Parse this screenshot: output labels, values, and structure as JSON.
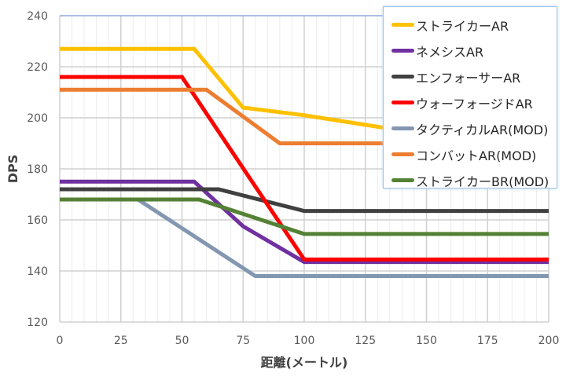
{
  "chart_data": {
    "type": "line",
    "title": "",
    "xlabel": "距離(メートル)",
    "ylabel": "DPS",
    "xlim": [
      0,
      200
    ],
    "ylim": [
      120,
      240
    ],
    "xticks": [
      0,
      25,
      50,
      75,
      100,
      125,
      150,
      175,
      200
    ],
    "yticks": [
      120,
      140,
      160,
      180,
      200,
      220,
      240
    ],
    "grid": true,
    "legend_position": "top-right",
    "series": [
      {
        "name": "ストライカーAR",
        "color": "#FFC000",
        "x": [
          0,
          55,
          75,
          100,
          130,
          200
        ],
        "y": [
          227,
          227,
          204,
          201,
          196.5,
          187
        ]
      },
      {
        "name": "ネメシスAR",
        "color": "#7030A0",
        "x": [
          0,
          55,
          75,
          100,
          200
        ],
        "y": [
          175,
          175,
          157.5,
          143.5,
          143.5
        ]
      },
      {
        "name": "エンフォーサーAR",
        "color": "#404040",
        "x": [
          0,
          65,
          100,
          200
        ],
        "y": [
          172,
          172,
          163.5,
          163.5
        ]
      },
      {
        "name": "ウォーフォージドAR",
        "color": "#FF0000",
        "x": [
          0,
          50,
          100,
          200
        ],
        "y": [
          216,
          216,
          144.5,
          144.5
        ]
      },
      {
        "name": "タクティカルAR(MOD)",
        "color": "#8497B0",
        "x": [
          0,
          32,
          80,
          200
        ],
        "y": [
          168,
          168,
          138,
          138
        ]
      },
      {
        "name": "コンバットAR(MOD)",
        "color": "#ED7D31",
        "x": [
          0,
          60,
          90,
          200
        ],
        "y": [
          211,
          211,
          190,
          190
        ]
      },
      {
        "name": "ストライカーBR(MOD)",
        "color": "#548235",
        "x": [
          0,
          57,
          100,
          200
        ],
        "y": [
          168,
          168,
          154.5,
          154.5
        ]
      }
    ]
  }
}
